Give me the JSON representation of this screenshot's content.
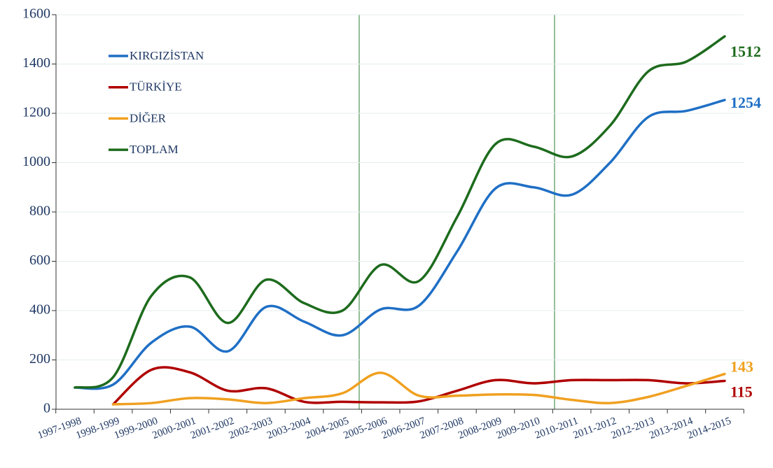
{
  "chart_data": {
    "type": "line",
    "categories": [
      "1997-1998",
      "1998-1999",
      "1999-2000",
      "2000-2001",
      "2001-2002",
      "2002-2003",
      "2003-2004",
      "2004-2005",
      "2005-2006",
      "2006-2007",
      "2007-2008",
      "2008-2009",
      "2009-2010",
      "2010-2011",
      "2011-2012",
      "2012-2013",
      "2013-2014",
      "2014-2015"
    ],
    "series": [
      {
        "name": "KIRGIZİSTAN",
        "color": "#1f6fc5",
        "values": [
          88,
          100,
          270,
          335,
          235,
          415,
          355,
          300,
          405,
          420,
          640,
          895,
          900,
          870,
          1000,
          1185,
          1210,
          1254
        ]
      },
      {
        "name": "TÜRKİYE",
        "color": "#b00000",
        "values": [
          null,
          20,
          160,
          150,
          75,
          85,
          30,
          30,
          28,
          32,
          75,
          118,
          105,
          118,
          118,
          118,
          105,
          115
        ]
      },
      {
        "name": "DİĞER",
        "color": "#f0a020",
        "values": [
          null,
          20,
          25,
          45,
          40,
          25,
          45,
          65,
          148,
          55,
          55,
          60,
          58,
          38,
          25,
          50,
          95,
          143
        ]
      },
      {
        "name": "TOPLAM",
        "color": "#1d6b1d",
        "values": [
          88,
          130,
          460,
          535,
          350,
          525,
          430,
          400,
          585,
          520,
          780,
          1075,
          1065,
          1025,
          1150,
          1370,
          1410,
          1512
        ]
      }
    ],
    "ylim": [
      0,
      1600
    ],
    "yticks": [
      0,
      200,
      400,
      600,
      800,
      1000,
      1200,
      1400,
      1600
    ],
    "grid": true
  }
}
